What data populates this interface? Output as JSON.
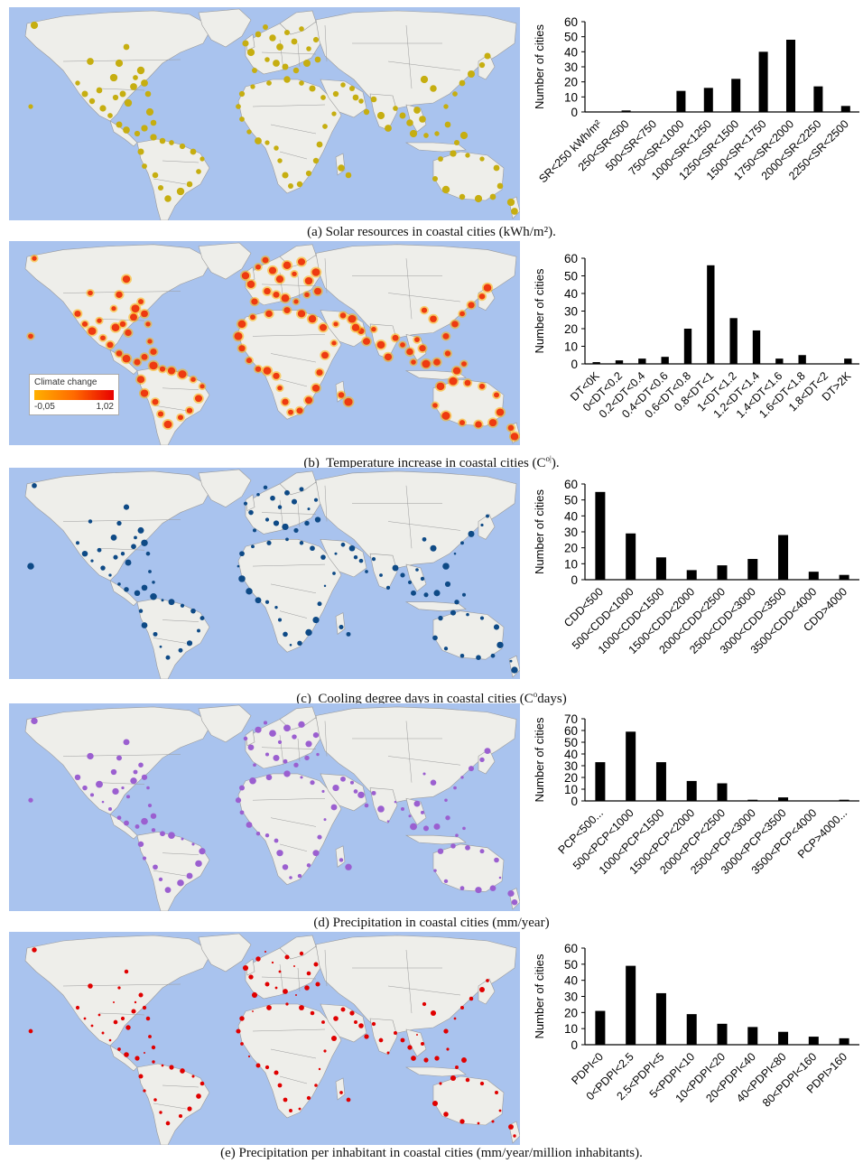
{
  "colors": {
    "ocean": "#a9c3ee",
    "land": "#eeeeea",
    "border": "#9a9a9a",
    "bar": "#000000"
  },
  "panels": [
    {
      "id": "a",
      "caption": "(a)  Solar resources in coastal cities (kWh/m²).",
      "marker_color": "#c6ae10",
      "marker_style": "olive-dots"
    },
    {
      "id": "b",
      "caption": "(b)  Temperature increase in coastal cities (Cº).",
      "marker_color": "#ee3a10",
      "marker_style": "heat-dots",
      "legend": {
        "title": "Climate change",
        "min_label": "-0,05",
        "max_label": "1,02",
        "gradient": [
          "#ffb000",
          "#ff6a00",
          "#e80000"
        ]
      }
    },
    {
      "id": "c",
      "caption": "(c)  Cooling degree days in coastal cities (Cºdays)",
      "marker_color": "#0e4a86",
      "marker_style": "blue-dots"
    },
    {
      "id": "d",
      "caption": "(d)  Precipitation in coastal cities (mm/year)",
      "marker_color": "#9b5fd0",
      "marker_style": "purple-dots"
    },
    {
      "id": "e",
      "caption": "(e) Precipitation per inhabitant in coastal cities (mm/year/million inhabitants).",
      "marker_color": "#e00000",
      "marker_style": "red-dots"
    }
  ],
  "chart_data": [
    {
      "type": "bar",
      "ylabel": "Number of cities",
      "ylim": [
        0,
        60
      ],
      "yticks": [
        0,
        10,
        20,
        30,
        40,
        50,
        60
      ],
      "categories": [
        "SR<250 kWh/m²",
        "250<SR<500",
        "500<SR<750",
        "750<SR<1000",
        "1000<SR<1250",
        "1250<SR<1500",
        "1500<SR<1750",
        "1750<SR<2000",
        "2000<SR<2250",
        "2250<SR<2500"
      ],
      "values": [
        0,
        1,
        0,
        14,
        16,
        22,
        40,
        48,
        17,
        4
      ]
    },
    {
      "type": "bar",
      "ylabel": "Number of cities",
      "ylim": [
        0,
        60
      ],
      "yticks": [
        0,
        10,
        20,
        30,
        40,
        50,
        60
      ],
      "categories": [
        "DT<0K",
        "0<DT<0.2",
        "0.2<DT<0.4",
        "0.4<DT<0.6",
        "0.6<DT<0.8",
        "0.8<DT<1",
        "1<DT<1.2",
        "1.2<DT<1.4",
        "1.4<DT<1.6",
        "1.6<DT<1.8",
        "1.8<DT<2",
        "DT>2K"
      ],
      "values": [
        1,
        2,
        3,
        4,
        20,
        56,
        26,
        19,
        3,
        5,
        0,
        3
      ]
    },
    {
      "type": "bar",
      "ylabel": "Number of cities",
      "ylim": [
        0,
        60
      ],
      "yticks": [
        0,
        10,
        20,
        30,
        40,
        50,
        60
      ],
      "categories": [
        "CDD<500",
        "500<CDD<1000",
        "1000<CDD<1500",
        "1500<CDD<2000",
        "2000<CDD<2500",
        "2500<CDD<3000",
        "3000<CDD<3500",
        "3500<CDD<4000",
        "CDD>4000"
      ],
      "values": [
        55,
        29,
        14,
        6,
        9,
        13,
        28,
        5,
        3
      ]
    },
    {
      "type": "bar",
      "ylabel": "Number of cities",
      "ylim": [
        0,
        70
      ],
      "yticks": [
        0,
        10,
        20,
        30,
        40,
        50,
        60,
        70
      ],
      "categories": [
        "PCP<500...",
        "500<PCP<1000",
        "1000<PCP<1500",
        "1500<PCP<2000",
        "2000<PCP<2500",
        "2500<PCP<3000",
        "3000<PCP<3500",
        "3500<PCP<4000",
        "PCP>4000..."
      ],
      "values": [
        33,
        59,
        33,
        17,
        15,
        1,
        3,
        0,
        1
      ]
    },
    {
      "type": "bar",
      "ylabel": "Number of cities",
      "ylim": [
        0,
        60
      ],
      "yticks": [
        0,
        10,
        20,
        30,
        40,
        50,
        60
      ],
      "categories": [
        "PDPI<0",
        "0<PDPI<2.5",
        "2.5<PDPI<5",
        "5<PDPI<10",
        "10<PDPI<20",
        "20<PDPI<40",
        "40<PDPI<80",
        "80<PDPI<160",
        "PDPI>160"
      ],
      "values": [
        21,
        49,
        32,
        19,
        13,
        11,
        8,
        5,
        4
      ]
    }
  ]
}
